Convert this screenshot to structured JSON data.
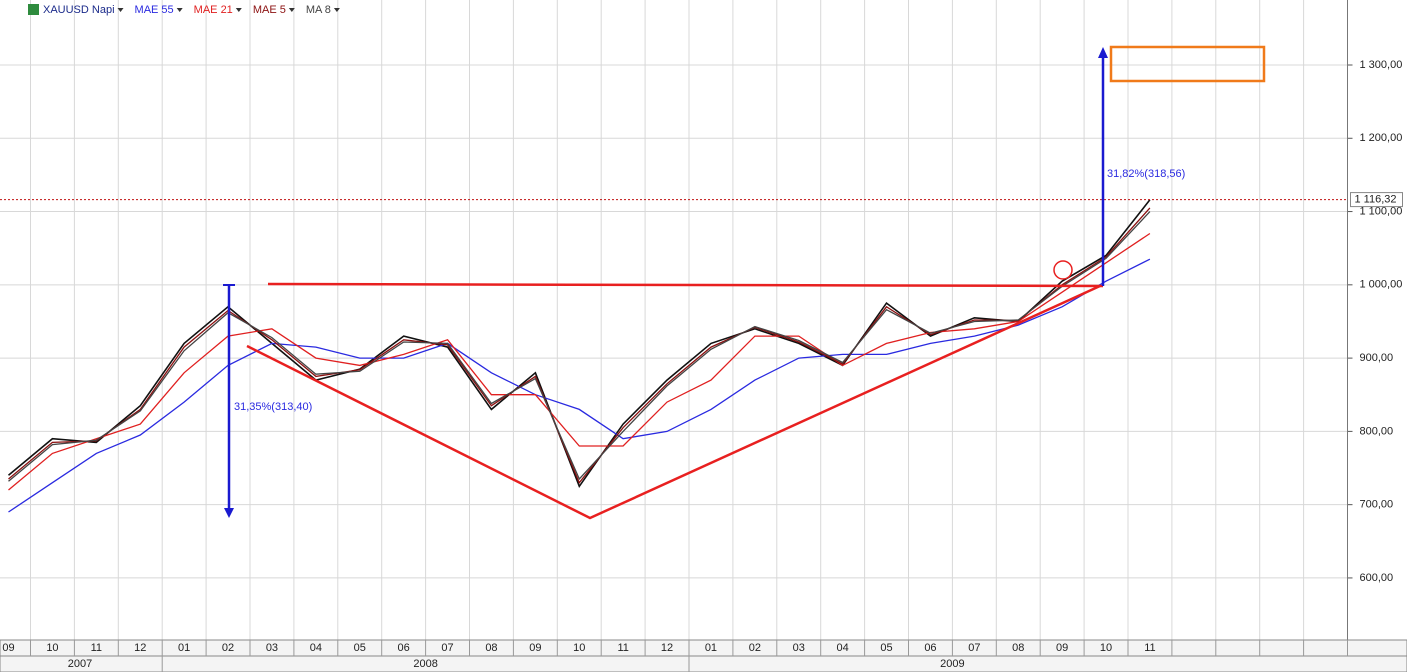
{
  "chart_data": {
    "type": "line",
    "categories": [
      "09",
      "10",
      "11",
      "12",
      "01",
      "02",
      "03",
      "04",
      "05",
      "06",
      "07",
      "08",
      "09",
      "10",
      "11",
      "12",
      "01",
      "02",
      "03",
      "04",
      "05",
      "06",
      "07",
      "08",
      "09",
      "10",
      "11",
      null,
      null,
      null,
      null
    ],
    "years": [
      "2007",
      "2008",
      "2009"
    ],
    "series": [
      {
        "name": "XAUUSD Napi",
        "color": "#111111",
        "values": [
          740,
          790,
          785,
          835,
          920,
          970,
          920,
          870,
          885,
          930,
          915,
          830,
          880,
          725,
          810,
          870,
          920,
          940,
          920,
          890,
          975,
          930,
          955,
          950,
          1005,
          1040,
          1116,
          null,
          null,
          null,
          null
        ]
      },
      {
        "name": "MAE 55",
        "color": "#2a2ae0",
        "values": [
          690,
          730,
          770,
          795,
          840,
          890,
          920,
          915,
          900,
          900,
          920,
          880,
          850,
          830,
          790,
          800,
          830,
          870,
          900,
          905,
          905,
          920,
          930,
          945,
          970,
          1005,
          1035,
          null,
          null,
          null,
          null
        ]
      },
      {
        "name": "MAE 21",
        "color": "#e02020",
        "values": [
          720,
          770,
          790,
          810,
          880,
          930,
          940,
          900,
          890,
          905,
          925,
          850,
          850,
          780,
          780,
          840,
          870,
          930,
          930,
          890,
          920,
          935,
          940,
          950,
          990,
          1030,
          1070,
          null,
          null,
          null,
          null
        ]
      },
      {
        "name": "MAE 5",
        "color": "#8b1010",
        "values": [
          735,
          785,
          787,
          830,
          915,
          965,
          925,
          875,
          884,
          925,
          918,
          835,
          875,
          730,
          805,
          865,
          915,
          942,
          922,
          892,
          970,
          932,
          952,
          951,
          1000,
          1038,
          1105,
          null,
          null,
          null,
          null
        ]
      },
      {
        "name": "MA 8",
        "color": "#444444",
        "values": [
          732,
          782,
          788,
          828,
          910,
          962,
          928,
          878,
          882,
          922,
          920,
          838,
          872,
          735,
          800,
          862,
          912,
          943,
          924,
          894,
          966,
          934,
          950,
          952,
          998,
          1036,
          1100,
          null,
          null,
          null,
          null
        ]
      }
    ],
    "ylim": [
      515.3,
      1388.7
    ],
    "yticks": [
      {
        "value": 600,
        "label": "600,00"
      },
      {
        "value": 700,
        "label": "700,00"
      },
      {
        "value": 800,
        "label": "800,00"
      },
      {
        "value": 900,
        "label": "900,00"
      },
      {
        "value": 1000,
        "label": "1 000,00"
      },
      {
        "value": 1100,
        "label": "1 100,00"
      },
      {
        "value": 1200,
        "label": "1 200,00"
      },
      {
        "value": 1300,
        "label": "1 300,00"
      }
    ],
    "last_price": {
      "value": 1116.32,
      "label": "1 116,32"
    },
    "annotations": [
      "31,35%(313,40)",
      "31,82%(318,56)"
    ],
    "grid": true
  }
}
